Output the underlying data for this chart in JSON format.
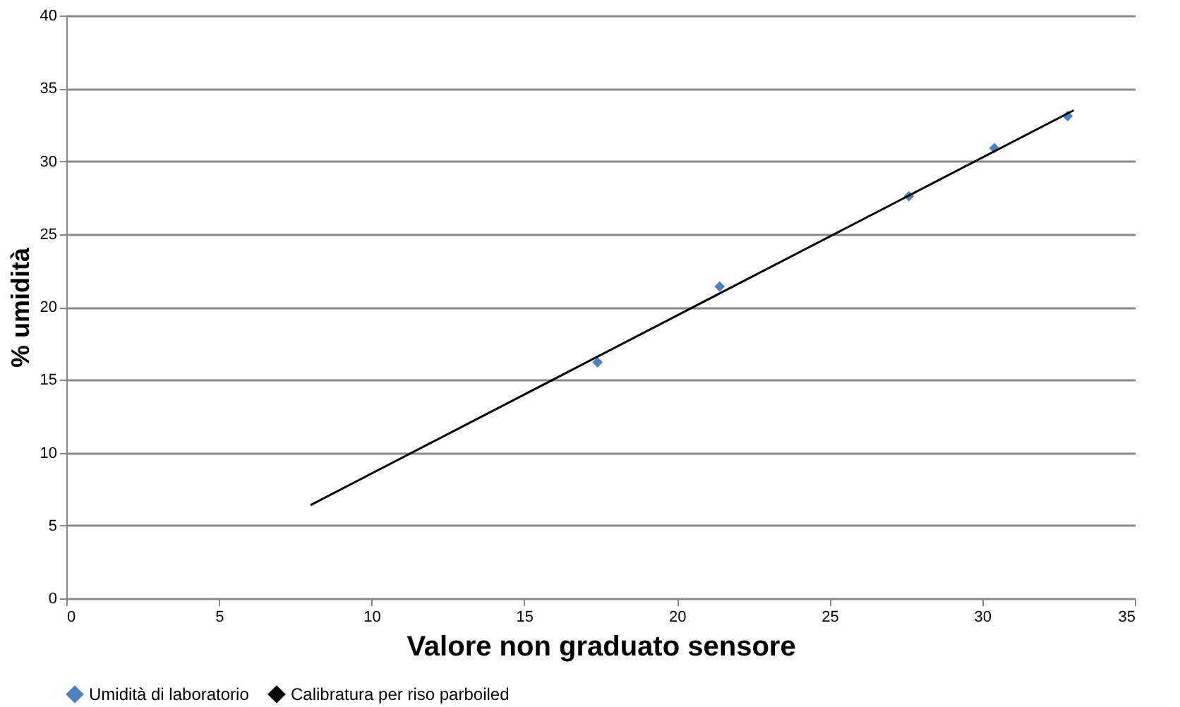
{
  "chart_data": {
    "type": "scatter",
    "xlabel": "Valore non graduato sensore",
    "ylabel": "% umidità",
    "xlim": [
      0,
      35
    ],
    "xticks": [
      0,
      5,
      10,
      15,
      20,
      25,
      30,
      35
    ],
    "ylim": [
      0,
      40
    ],
    "yticks": [
      0,
      5,
      10,
      15,
      20,
      25,
      30,
      35,
      40
    ],
    "grid": "y",
    "legend": "bottom",
    "marker": "diamond",
    "series": [
      {
        "name": "Umidità di laboratorio",
        "color": "#4f81bd",
        "x": [
          17.4,
          21.4,
          27.6,
          30.4,
          32.8
        ],
        "values": [
          16.2,
          21.4,
          27.6,
          30.9,
          33.1
        ]
      },
      {
        "name": "Calibratura per riso parboiled",
        "type": "line",
        "color": "#000000",
        "x": [
          8,
          33
        ],
        "values": [
          6.4,
          33.5
        ],
        "marker": "none",
        "line_style": "solid"
      }
    ]
  }
}
